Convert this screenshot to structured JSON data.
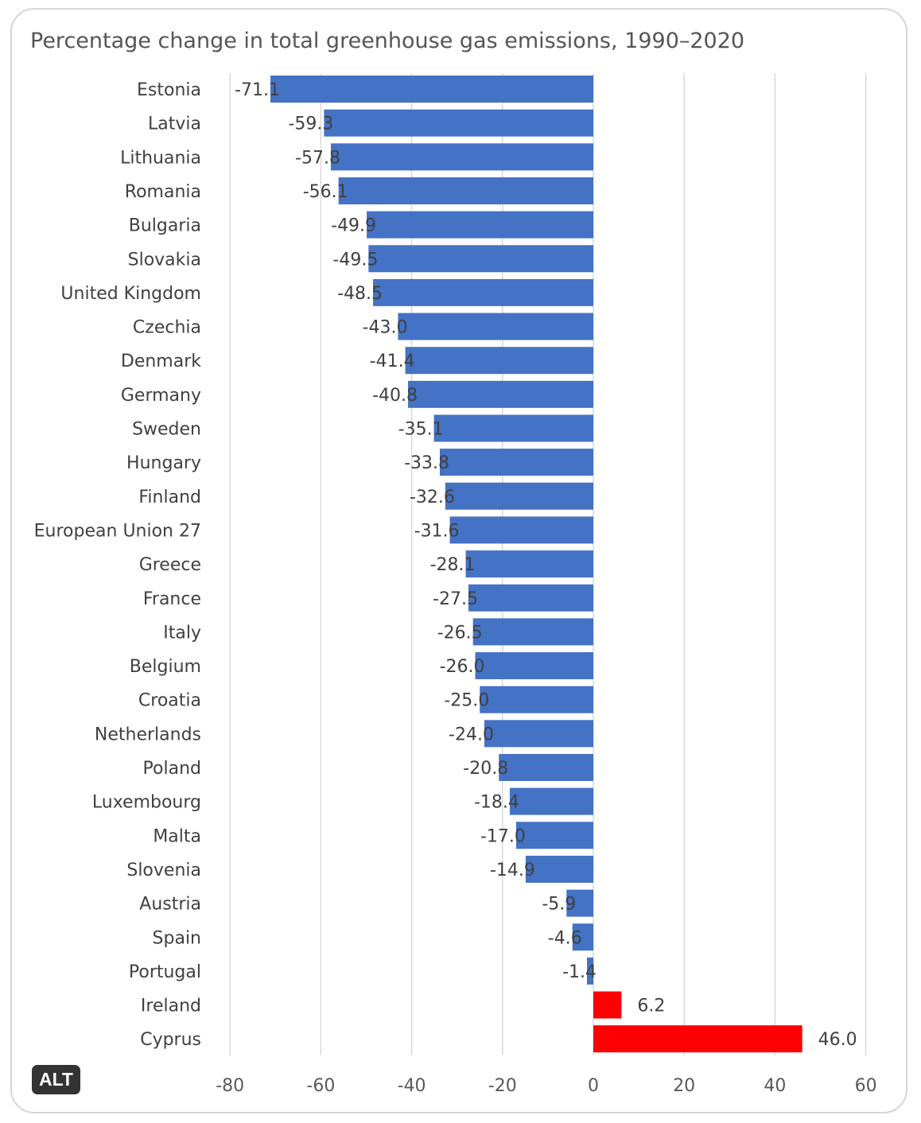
{
  "badge": "ALT",
  "chart_data": {
    "type": "bar",
    "orientation": "horizontal",
    "title": "Percentage change in total greenhouse gas emissions, 1990–2020",
    "xlabel": "",
    "ylabel": "",
    "xlim": [
      -80,
      60
    ],
    "xticks": [
      -80,
      -60,
      -40,
      -20,
      0,
      20,
      40,
      60
    ],
    "grid": "vertical",
    "legend": "none",
    "colors": {
      "negative": "#4472C4",
      "positive": "#FF0000"
    },
    "categories": [
      "Estonia",
      "Latvia",
      "Lithuania",
      "Romania",
      "Bulgaria",
      "Slovakia",
      "United Kingdom",
      "Czechia",
      "Denmark",
      "Germany",
      "Sweden",
      "Hungary",
      "Finland",
      "European Union 27",
      "Greece",
      "France",
      "Italy",
      "Belgium",
      "Croatia",
      "Netherlands",
      "Poland",
      "Luxembourg",
      "Malta",
      "Slovenia",
      "Austria",
      "Spain",
      "Portugal",
      "Ireland",
      "Cyprus"
    ],
    "values": [
      -71.1,
      -59.3,
      -57.8,
      -56.1,
      -49.9,
      -49.5,
      -48.5,
      -43.0,
      -41.4,
      -40.8,
      -35.1,
      -33.8,
      -32.6,
      -31.6,
      -28.1,
      -27.5,
      -26.5,
      -26.0,
      -25.0,
      -24.0,
      -20.8,
      -18.4,
      -17.0,
      -14.9,
      -5.9,
      -4.6,
      -1.4,
      6.2,
      46.0
    ]
  }
}
